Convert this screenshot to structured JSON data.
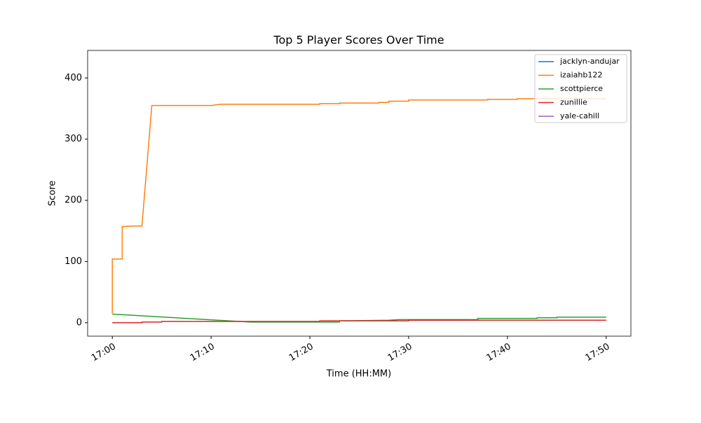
{
  "chart_data": {
    "type": "line",
    "title": "Top 5 Player Scores Over Time",
    "xlabel": "Time (HH:MM)",
    "ylabel": "Score",
    "xlim": [
      "16:57:30",
      "17:52:30"
    ],
    "xticks": [
      "17:00",
      "17:10",
      "17:20",
      "17:30",
      "17:40",
      "17:50"
    ],
    "ylim": [
      -22,
      445
    ],
    "yticks": [
      0,
      100,
      200,
      300,
      400
    ],
    "grid": false,
    "legend": "upper right",
    "series": [
      {
        "name": "jacklyn-andujar",
        "color": "#1f77b4",
        "x": [
          "17:00"
        ],
        "values": [
          0
        ]
      },
      {
        "name": "izaiahb122",
        "color": "#ff7f0e",
        "x": [
          "17:00",
          "17:00",
          "17:01",
          "17:01",
          "17:01",
          "17:02",
          "17:03",
          "17:04",
          "17:10",
          "17:11",
          "17:21",
          "17:21",
          "17:23",
          "17:23",
          "17:27",
          "17:27",
          "17:28",
          "17:28",
          "17:30",
          "17:30",
          "17:38",
          "17:38",
          "17:41",
          "17:41",
          "17:50"
        ],
        "values": [
          15,
          104,
          104,
          120,
          157,
          158,
          158,
          355,
          355,
          357,
          357,
          358,
          358,
          359,
          359,
          360,
          360,
          362,
          362,
          364,
          364,
          365,
          365,
          366,
          366
        ]
      },
      {
        "name": "scottpierce",
        "color": "#2ca02c",
        "x": [
          "17:00",
          "17:14",
          "17:23",
          "17:23",
          "17:28",
          "17:29",
          "17:37",
          "17:37",
          "17:43",
          "17:43",
          "17:45",
          "17:45",
          "17:50"
        ],
        "values": [
          14,
          1,
          1,
          3,
          4,
          5,
          5,
          7,
          7,
          8,
          8,
          9,
          9
        ]
      },
      {
        "name": "zunillie",
        "color": "#d62728",
        "x": [
          "17:00",
          "17:03",
          "17:03",
          "17:05",
          "17:05",
          "17:21",
          "17:21",
          "17:30",
          "17:30",
          "17:50"
        ],
        "values": [
          0,
          0,
          1,
          1,
          2,
          2,
          3,
          3,
          4,
          4
        ]
      },
      {
        "name": "yale-cahill",
        "color": "#9467bd",
        "x": [
          "17:00"
        ],
        "values": [
          0
        ]
      }
    ]
  }
}
